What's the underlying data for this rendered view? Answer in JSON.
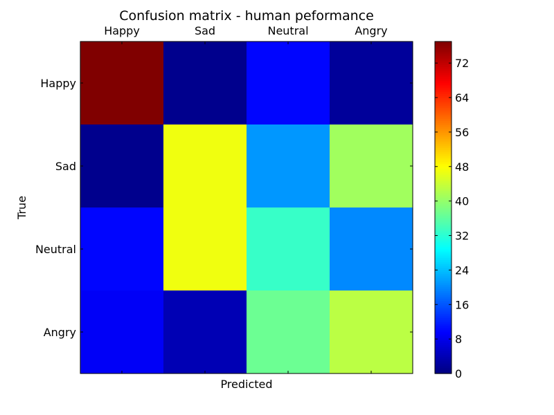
{
  "chart_data": {
    "type": "heatmap",
    "title": "Confusion matrix - human peformance",
    "xlabel": "Predicted",
    "ylabel": "True",
    "x_categories": [
      "Happy",
      "Sad",
      "Neutral",
      "Angry"
    ],
    "y_categories": [
      "Happy",
      "Sad",
      "Neutral",
      "Angry"
    ],
    "x_tick_position": "top",
    "values": [
      [
        77,
        1,
        10,
        2
      ],
      [
        1,
        47,
        21,
        41
      ],
      [
        10,
        47,
        33,
        20
      ],
      [
        9,
        4,
        37,
        43
      ]
    ],
    "colorbar": {
      "colormap": "jet",
      "range": [
        0,
        77
      ],
      "ticks": [
        0,
        8,
        16,
        24,
        32,
        40,
        48,
        56,
        64,
        72
      ]
    }
  }
}
